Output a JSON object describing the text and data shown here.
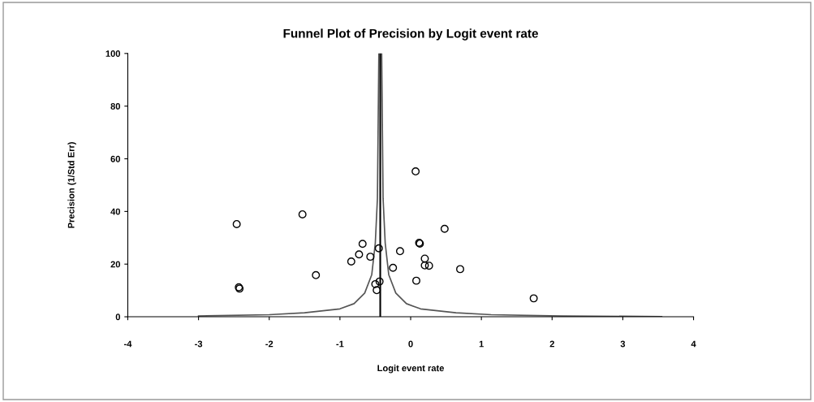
{
  "chart_data": {
    "type": "scatter",
    "title": "Funnel Plot of Precision by Logit event rate",
    "xlabel": "Logit event rate",
    "ylabel": "Precision (1/Std Err)",
    "xlim": [
      -4,
      4
    ],
    "xticks": [
      -4,
      -3,
      -2,
      -1,
      0,
      1,
      2,
      3,
      4
    ],
    "ylim": [
      0,
      100
    ],
    "yticks": [
      0,
      20,
      40,
      60,
      80,
      100
    ],
    "grid": false,
    "legend": false,
    "marker": "circle",
    "ref_lines": [
      {
        "axis": "x",
        "value": -0.43,
        "color": "#000000",
        "line_style": "solid"
      }
    ],
    "series": [
      {
        "color": "#000000",
        "x": [
          -2.46,
          -1.53,
          -2.42,
          -2.43,
          -1.34,
          -0.84,
          -0.73,
          -0.68,
          -0.57,
          -0.45,
          -0.25,
          -0.15,
          0.13,
          0.12,
          0.08,
          0.2,
          0.2,
          0.26,
          0.48,
          -0.5,
          -0.44,
          -0.48,
          0.7,
          1.74,
          0.07
        ],
        "values": [
          35.2,
          38.9,
          10.7,
          11.2,
          15.8,
          21.0,
          23.7,
          27.7,
          22.8,
          26.0,
          18.6,
          24.9,
          27.8,
          28.1,
          13.7,
          22.1,
          19.5,
          19.4,
          33.4,
          12.4,
          13.4,
          10.1,
          18.1,
          7.0,
          55.2
        ]
      },
      {
        "type": "line",
        "color": "#555555",
        "marker": "none",
        "x": [
          -3.0,
          -2.0,
          -1.5,
          -1.0,
          -0.8,
          -0.65,
          -0.55,
          -0.5,
          -0.47,
          -0.45
        ],
        "values": [
          0.3,
          0.8,
          1.5,
          3,
          5,
          9,
          16,
          28,
          45,
          100
        ]
      },
      {
        "type": "line",
        "color": "#555555",
        "marker": "none",
        "x": [
          -0.41,
          -0.39,
          -0.36,
          -0.31,
          -0.21,
          -0.06,
          0.14,
          0.64,
          1.14,
          2.14,
          3.55
        ],
        "values": [
          100,
          45,
          28,
          16,
          9,
          5,
          3,
          1.5,
          0.8,
          0.3,
          0.1
        ]
      }
    ]
  }
}
